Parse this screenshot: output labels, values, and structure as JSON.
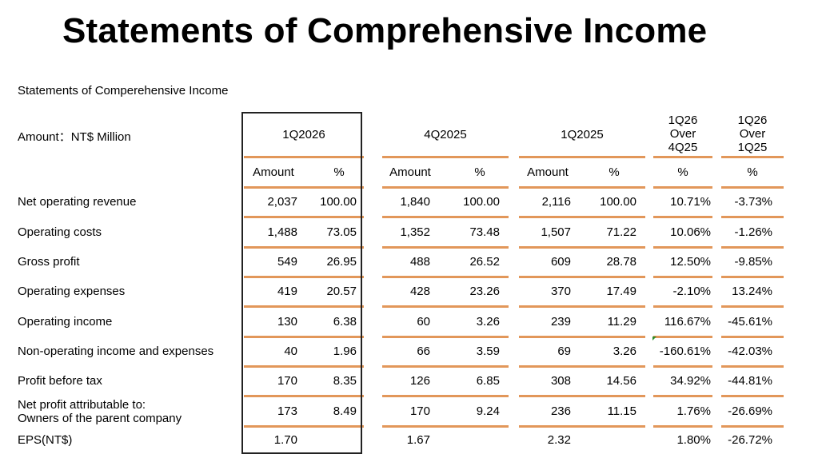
{
  "title": "Statements of Comprehensive Income",
  "subtitle": "Statements of Comperehensive Income",
  "unit_label": "Amount：NT$ Million",
  "periods": [
    {
      "label": "1Q2026",
      "cols": [
        "Amount",
        "%"
      ]
    },
    {
      "label": "4Q2025",
      "cols": [
        "Amount",
        "%"
      ]
    },
    {
      "label": "1Q2025",
      "cols": [
        "Amount",
        "%"
      ]
    },
    {
      "label": "1Q26 Over 4Q25",
      "lines": [
        "1Q26",
        "Over",
        "4Q25"
      ],
      "cols": [
        "%"
      ]
    },
    {
      "label": "1Q26 Over 1Q25",
      "lines": [
        "1Q26",
        "Over",
        "1Q25"
      ],
      "cols": [
        "%"
      ]
    }
  ],
  "rows": [
    {
      "label": "Net operating revenue",
      "values": [
        "2,037",
        "100.00",
        "1,840",
        "100.00",
        "2,116",
        "100.00",
        "10.71%",
        "-3.73%"
      ]
    },
    {
      "label": "Operating costs",
      "values": [
        "1,488",
        "73.05",
        "1,352",
        "73.48",
        "1,507",
        "71.22",
        "10.06%",
        "-1.26%"
      ]
    },
    {
      "label": "Gross profit",
      "values": [
        "549",
        "26.95",
        "488",
        "26.52",
        "609",
        "28.78",
        "12.50%",
        "-9.85%"
      ]
    },
    {
      "label": "Operating expenses",
      "values": [
        "419",
        "20.57",
        "428",
        "23.26",
        "370",
        "17.49",
        "-2.10%",
        "13.24%"
      ]
    },
    {
      "label": "Operating income",
      "values": [
        "130",
        "6.38",
        "60",
        "3.26",
        "239",
        "11.29",
        "116.67%",
        "-45.61%"
      ]
    },
    {
      "label": "Non-operating income and expenses",
      "values": [
        "40",
        "1.96",
        "66",
        "3.59",
        "69",
        "3.26",
        "-160.61%",
        "-42.03%"
      ]
    },
    {
      "label": "Profit before tax",
      "values": [
        "170",
        "8.35",
        "126",
        "6.85",
        "308",
        "14.56",
        "34.92%",
        "-44.81%"
      ]
    },
    {
      "label": "Net profit attributable to:",
      "label2": "Owners of the parent company",
      "values": [
        "173",
        "8.49",
        "170",
        "9.24",
        "236",
        "11.15",
        "1.76%",
        "-26.69%"
      ]
    },
    {
      "label": "EPS(NT$)",
      "values": [
        "1.70",
        "",
        "1.67",
        "",
        "2.32",
        "",
        "1.80%",
        "-26.72%"
      ]
    }
  ],
  "colors": {
    "rule": "#e2975a",
    "box": "#222222",
    "marker": "#2f8f2f"
  }
}
